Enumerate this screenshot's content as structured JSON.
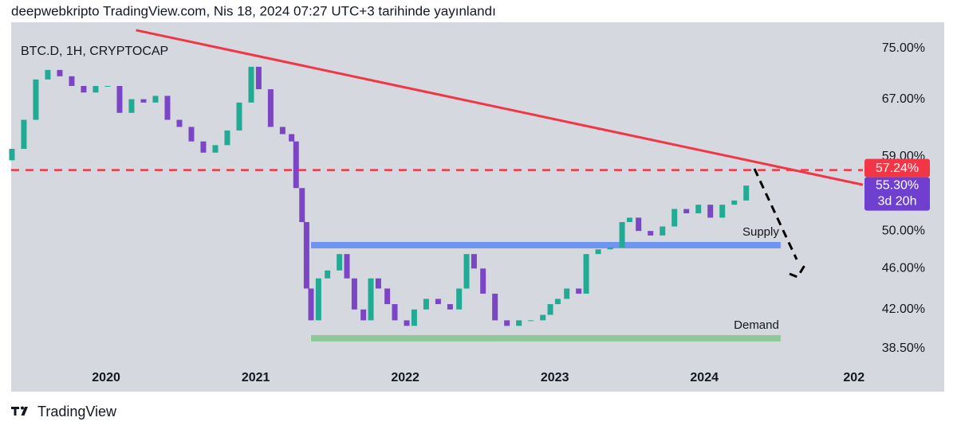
{
  "header": "deepwebkripto TradingView.com, Nis 18, 2024 07:27 UTC+3 tarihinde yayınlandı",
  "footer": "TradingView",
  "chart_data": {
    "type": "candlestick",
    "title": "BTC.D, 1H, CRYPTOCAP",
    "log_scale": true,
    "xlim": [
      2019.365,
      2025.06
    ],
    "xticks": [
      2020,
      2021,
      2022,
      2023,
      2024,
      {
        "value": 2025,
        "label": "202"
      }
    ],
    "ylim": [
      37.36,
      79.2
    ],
    "yticks": [
      {
        "value": 75,
        "label": "75.00%"
      },
      {
        "value": 67,
        "label": "67.00%"
      },
      {
        "value": 59,
        "label": "59.00%"
      },
      {
        "value": 50,
        "label": "50.00%"
      },
      {
        "value": 46,
        "label": "46.00%"
      },
      {
        "value": 42,
        "label": "42.00%"
      },
      {
        "value": 38.5,
        "label": "38.50%"
      }
    ],
    "up_color": "#22ab94",
    "down_color": "#7b45c6",
    "series": [
      {
        "x": [
          2019.37,
          2019.45,
          2019.53,
          2019.61,
          2019.69,
          2019.77,
          2019.85,
          2019.93,
          2020.01,
          2020.09,
          2020.17,
          2020.25,
          2020.33,
          2020.41,
          2020.49,
          2020.57,
          2020.65,
          2020.73,
          2020.81,
          2020.89,
          2020.97,
          2021.02,
          2021.1,
          2021.18,
          2021.24,
          2021.27,
          2021.31,
          2021.34,
          2021.37,
          2021.42,
          2021.48,
          2021.56,
          2021.61,
          2021.66,
          2021.72,
          2021.77,
          2021.82,
          2021.88,
          2021.93,
          2022.01,
          2022.06,
          2022.14,
          2022.22,
          2022.3,
          2022.36,
          2022.41,
          2022.46,
          2022.52,
          2022.6,
          2022.68,
          2022.76,
          2022.84,
          2022.92,
          2022.97,
          2023.02,
          2023.08,
          2023.16,
          2023.21,
          2023.29,
          2023.37,
          2023.45,
          2023.5,
          2023.56,
          2023.64,
          2023.72,
          2023.8,
          2023.88,
          2023.96,
          2024.04,
          2024.12,
          2024.2,
          2024.28
        ],
        "open": [
          58.5,
          60,
          64,
          70,
          71.5,
          70.5,
          69,
          68,
          69,
          69,
          65,
          67,
          66.5,
          67.5,
          64,
          63,
          61,
          59.5,
          60.5,
          62.5,
          66.5,
          72,
          68.5,
          63,
          62,
          61,
          55,
          51,
          44,
          41,
          45,
          45.8,
          47.5,
          45,
          42,
          41,
          45,
          44,
          42.5,
          41,
          40.5,
          42,
          43,
          42.5,
          42,
          44,
          47.5,
          46,
          43.5,
          41,
          40.5,
          41,
          41,
          41.5,
          42.5,
          43,
          44,
          43.5,
          47.5,
          48,
          48.2,
          51,
          51.5,
          50,
          49.5,
          50.5,
          52.5,
          52,
          53,
          51.5,
          53,
          53.5
        ],
        "close": [
          60,
          64,
          70,
          71.5,
          70.5,
          69,
          68,
          69,
          69,
          65,
          67,
          66.5,
          67.5,
          64,
          63,
          61,
          59.5,
          60.5,
          62.5,
          66.5,
          72,
          68.5,
          63,
          62,
          61,
          55,
          51,
          44,
          41,
          45,
          45.8,
          47.5,
          45,
          42,
          41,
          45,
          44,
          42.5,
          41,
          40.5,
          42,
          43,
          42.5,
          42,
          44,
          47.5,
          46,
          43.5,
          41,
          40.5,
          41,
          41,
          41.5,
          42.5,
          43,
          44,
          43.5,
          47.5,
          48,
          48.2,
          51,
          51.5,
          50,
          49.5,
          50.5,
          52.5,
          52,
          53,
          51.5,
          53,
          53.5,
          55.3
        ]
      }
    ],
    "trendline": {
      "color": "#f23645",
      "x": [
        2020.2,
        2025.06
      ],
      "y": [
        78.1,
        55.4
      ]
    },
    "horizontal_line": {
      "color": "#f23645",
      "value": 57.24,
      "label": "57.24%"
    },
    "price_tag": {
      "color": "#6f3fd0",
      "value": 55.3,
      "label": "55.30%",
      "countdown": "3d 20h"
    },
    "zones": [
      {
        "label": "Supply",
        "color": "#6e95f0",
        "value": 48.45,
        "x": [
          2021.37,
          2024.51
        ]
      },
      {
        "label": "Demand",
        "color": "#8fc99a",
        "value": 39.4,
        "x": [
          2021.37,
          2024.51
        ]
      }
    ]
  }
}
